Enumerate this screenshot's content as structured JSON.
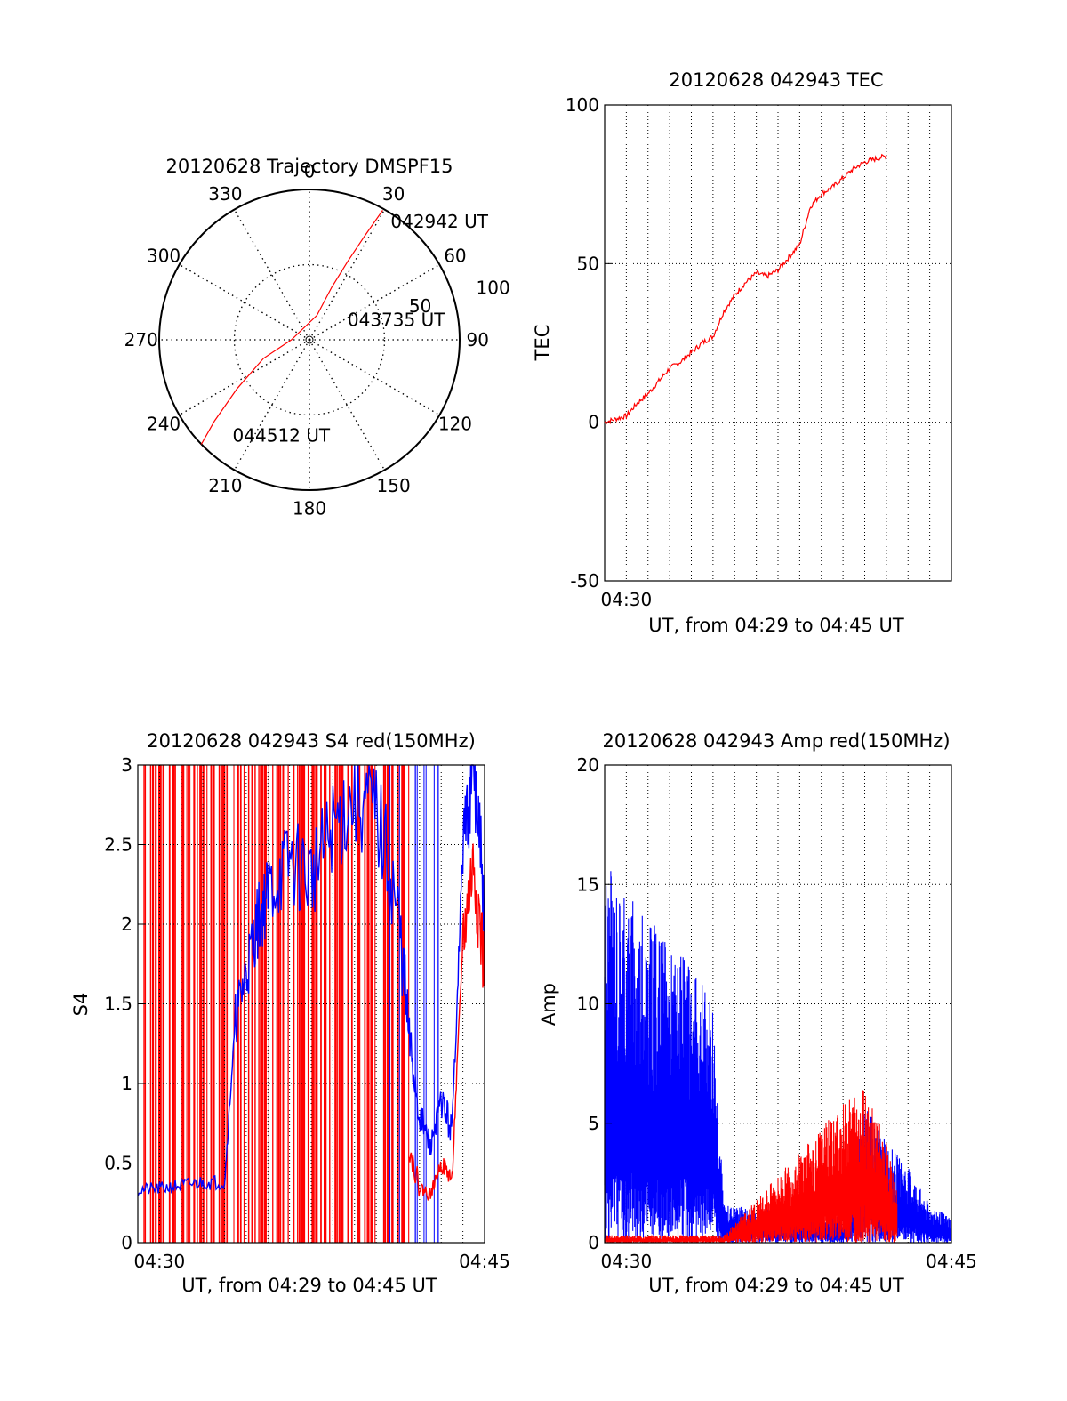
{
  "colors": {
    "red": "#ff0000",
    "blue": "#0000ff",
    "axis": "#000000",
    "grid": "#000000"
  },
  "chart_data": [
    {
      "id": "trajectory",
      "type": "polar",
      "title": "20120628 Trajectory DMSPF15",
      "angle_labels": [
        "0",
        "30",
        "60",
        "90",
        "120",
        "150",
        "180",
        "210",
        "240",
        "270",
        "300",
        "330"
      ],
      "angle_ticks_deg": [
        0,
        30,
        60,
        90,
        120,
        150,
        180,
        210,
        240,
        270,
        300,
        330
      ],
      "radial_labels": [
        "50",
        "100"
      ],
      "radial_ticks": [
        50,
        100
      ],
      "grid": true,
      "series": [
        {
          "color": "red",
          "points": [
            {
              "az": 29.5,
              "r": 99
            },
            {
              "az": 28.0,
              "r": 78
            },
            {
              "az": 26.0,
              "r": 58
            },
            {
              "az": 23.0,
              "r": 38
            },
            {
              "az": 17.0,
              "r": 17
            },
            {
              "az": 270.0,
              "r": 12
            },
            {
              "az": 248.0,
              "r": 33
            },
            {
              "az": 236.0,
              "r": 58
            },
            {
              "az": 229.5,
              "r": 83
            },
            {
              "az": 226.0,
              "r": 100
            }
          ]
        }
      ],
      "annotations": [
        {
          "text": "042942 UT",
          "az": 36,
          "r": 92
        },
        {
          "text": "043735 UT",
          "az": 70,
          "r": 27
        },
        {
          "text": "044512 UT",
          "az": 217,
          "r": 85
        }
      ]
    },
    {
      "id": "tec",
      "type": "line",
      "title": "20120628 042943 TEC",
      "xlabel": "UT, from 04:29 to 04:45 UT",
      "ylabel": "TEC",
      "xlim": [
        "04:29",
        "04:45"
      ],
      "ylim": [
        -50,
        100
      ],
      "yticks": [
        "-50",
        "0",
        "50",
        "100"
      ],
      "xticks": [
        "04:30"
      ],
      "grid": true,
      "series": [
        {
          "color": "red",
          "points": [
            [
              "04:29:00",
              0
            ],
            [
              "04:29:30",
              1
            ],
            [
              "04:30:00",
              2
            ],
            [
              "04:30:30",
              6
            ],
            [
              "04:31:00",
              9
            ],
            [
              "04:31:30",
              13
            ],
            [
              "04:32:00",
              17
            ],
            [
              "04:32:30",
              19
            ],
            [
              "04:33:00",
              22
            ],
            [
              "04:33:30",
              25
            ],
            [
              "04:34:00",
              27
            ],
            [
              "04:34:30",
              35
            ],
            [
              "04:35:00",
              40
            ],
            [
              "04:35:30",
              44
            ],
            [
              "04:36:00",
              47
            ],
            [
              "04:36:30",
              46
            ],
            [
              "04:37:00",
              48
            ],
            [
              "04:37:30",
              52
            ],
            [
              "04:38:00",
              56
            ],
            [
              "04:38:30",
              68
            ],
            [
              "04:39:00",
              72
            ],
            [
              "04:39:30",
              74
            ],
            [
              "04:40:00",
              77
            ],
            [
              "04:40:30",
              80
            ],
            [
              "04:41:00",
              82
            ],
            [
              "04:41:30",
              83
            ],
            [
              "04:42:00",
              84
            ]
          ]
        }
      ]
    },
    {
      "id": "s4",
      "type": "line",
      "title": "20120628 042943 S4 red(150MHz)",
      "xlabel": "UT, from 04:29 to 04:45 UT",
      "ylabel": "S4",
      "xlim": [
        "04:29",
        "04:45"
      ],
      "ylim": [
        0,
        3
      ],
      "yticks": [
        "0",
        "0.5",
        "1",
        "1.5",
        "2",
        "2.5",
        "3"
      ],
      "xticks": [
        "04:30",
        "04:45"
      ],
      "grid": true,
      "series": [
        {
          "color": "blue",
          "points": [
            [
              "04:29",
              0.33
            ],
            [
              "04:30",
              0.34
            ],
            [
              "04:31",
              0.36
            ],
            [
              "04:32",
              0.38
            ],
            [
              "04:33",
              0.38
            ],
            [
              "04:33:30",
              1.4
            ],
            [
              "04:34",
              1.7
            ],
            [
              "04:34:30",
              2.0
            ],
            [
              "04:35",
              2.2
            ],
            [
              "04:36",
              2.4
            ],
            [
              "04:37",
              2.3
            ],
            [
              "04:38",
              2.6
            ],
            [
              "04:39",
              2.8
            ],
            [
              "04:40",
              2.7
            ],
            [
              "04:41",
              2.1
            ],
            [
              "04:41:30",
              1.3
            ],
            [
              "04:42",
              0.8
            ],
            [
              "04:42:30",
              0.6
            ],
            [
              "04:43",
              0.9
            ],
            [
              "04:43:30",
              0.7
            ],
            [
              "04:44",
              2.5
            ],
            [
              "04:44:30",
              3.0
            ],
            [
              "04:45",
              2.0
            ]
          ]
        },
        {
          "color": "red",
          "points": [
            [
              "04:41:30",
              0.6
            ],
            [
              "04:42",
              0.35
            ],
            [
              "04:42:30",
              0.3
            ],
            [
              "04:43",
              0.5
            ],
            [
              "04:43:30",
              0.4
            ],
            [
              "04:44",
              1.9
            ],
            [
              "04:44:30",
              2.4
            ],
            [
              "04:45",
              1.7
            ]
          ]
        }
      ]
    },
    {
      "id": "amp",
      "type": "line",
      "title": "20120628 042943 Amp red(150MHz)",
      "xlabel": "UT, from 04:29 to 04:45 UT",
      "ylabel": "Amp",
      "xlim": [
        "04:29",
        "04:45"
      ],
      "ylim": [
        0,
        20
      ],
      "yticks": [
        "0",
        "5",
        "10",
        "15",
        "20"
      ],
      "xticks": [
        "04:30",
        "04:45"
      ],
      "grid": true,
      "series": [
        {
          "color": "blue",
          "points": [
            [
              "04:29",
              15.5
            ],
            [
              "04:30",
              14.0
            ],
            [
              "04:31",
              13.0
            ],
            [
              "04:32",
              12.0
            ],
            [
              "04:33",
              11.0
            ],
            [
              "04:34",
              10.0
            ],
            [
              "04:34:30",
              1.5
            ],
            [
              "04:36",
              1.4
            ],
            [
              "04:38",
              1.2
            ],
            [
              "04:40",
              1.1
            ],
            [
              "04:41",
              5.5
            ],
            [
              "04:42",
              4.0
            ],
            [
              "04:43",
              3.0
            ],
            [
              "04:44",
              1.5
            ],
            [
              "04:45",
              1.0
            ]
          ]
        },
        {
          "color": "red",
          "points": [
            [
              "04:29",
              0.3
            ],
            [
              "04:34:30",
              0.3
            ],
            [
              "04:41",
              6.5
            ],
            [
              "04:42",
              4.0
            ],
            [
              "04:42:30",
              2.0
            ]
          ]
        }
      ]
    }
  ]
}
